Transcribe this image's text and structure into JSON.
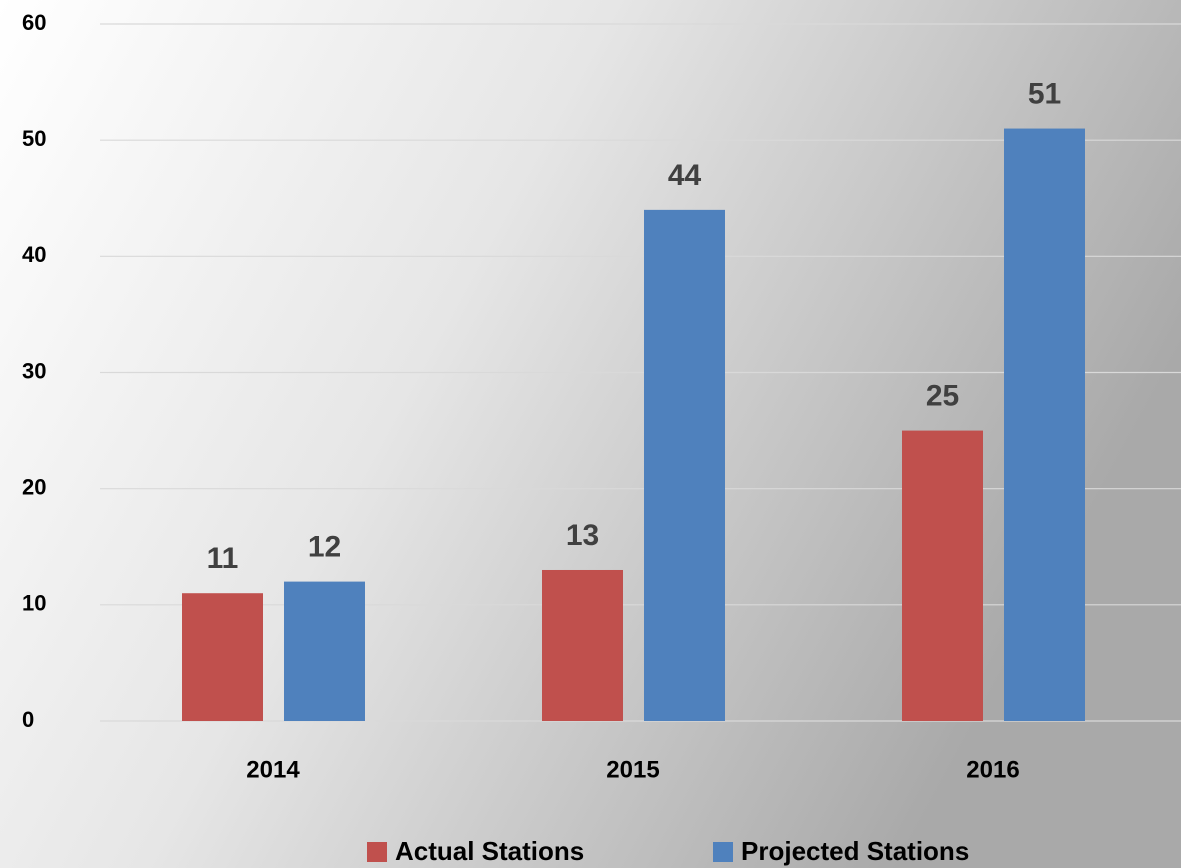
{
  "chart_data": {
    "type": "bar",
    "categories": [
      "2014",
      "2015",
      "2016"
    ],
    "series": [
      {
        "name": "Actual Stations",
        "color": "#c0504d",
        "values": [
          11,
          13,
          25
        ]
      },
      {
        "name": "Projected Stations",
        "color": "#4f81bd",
        "values": [
          12,
          44,
          51
        ]
      }
    ],
    "ylim": [
      0,
      60
    ],
    "yticks": [
      0,
      10,
      20,
      30,
      40,
      50,
      60
    ],
    "grid": true,
    "legend": "bottom"
  }
}
